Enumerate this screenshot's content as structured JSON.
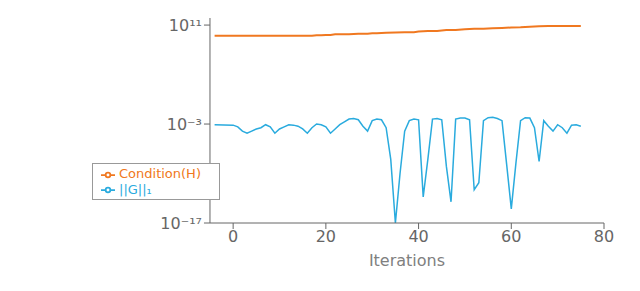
{
  "chart_data": {
    "type": "line",
    "xlabel": "Iterations",
    "log": "y",
    "grid": false,
    "legend": "lower left",
    "xlim": [
      -5,
      80
    ],
    "xticks": [
      0,
      20,
      40,
      60,
      80
    ],
    "ylim": [
      1e-17,
      1000000000000.0
    ],
    "yticks": [
      {
        "value": 1e-17,
        "label": "10⁻¹⁷"
      },
      {
        "value": 0.001,
        "label": "10⁻³"
      },
      {
        "value": 100000000000.0,
        "label": "10¹¹"
      }
    ],
    "series": [
      {
        "name": "||G||₁",
        "color": "#2AABDE",
        "x": [
          -4,
          0,
          1,
          2,
          3,
          4,
          5,
          6,
          7,
          8,
          9,
          10,
          11,
          12,
          13,
          14,
          15,
          16,
          17,
          18,
          19,
          20,
          21,
          22,
          23,
          24,
          25,
          26,
          27,
          28,
          29,
          30,
          31,
          32,
          33,
          34,
          35,
          36,
          37,
          38,
          39,
          40,
          41,
          42,
          43,
          44,
          45,
          46,
          47,
          48,
          49,
          50,
          51,
          52,
          53,
          54,
          55,
          56,
          57,
          58,
          59,
          60,
          61,
          62,
          63,
          64,
          65,
          66,
          67,
          68,
          69,
          70,
          71,
          72,
          73,
          74,
          75
        ],
        "values": [
          0.0008,
          0.0007,
          0.0004,
          0.0001,
          5e-05,
          0.0001,
          0.0002,
          0.0003,
          0.0008,
          0.0004,
          5e-05,
          0.0002,
          0.0004,
          0.0008,
          0.0007,
          0.0005,
          0.0002,
          5e-05,
          0.0003,
          0.001,
          0.0008,
          0.0004,
          5e-05,
          0.0002,
          0.0008,
          0.002,
          0.005,
          0.006,
          0.004,
          0.0005,
          0.0001,
          0.003,
          0.005,
          0.004,
          0.0003,
          1e-08,
          1e-17,
          1e-10,
          0.0001,
          0.003,
          0.005,
          0.004,
          5e-14,
          1e-08,
          0.005,
          0.006,
          0.004,
          1e-09,
          1e-14,
          0.005,
          0.007,
          0.007,
          0.004,
          5e-13,
          5e-12,
          0.003,
          0.008,
          0.009,
          0.006,
          0.003,
          2e-09,
          1e-15,
          3e-09,
          0.003,
          0.008,
          0.007,
          0.0003,
          5e-09,
          0.003,
          0.0005,
          0.0001,
          0.0008,
          0.0003,
          5e-05,
          0.0007,
          0.0008,
          0.0005
        ]
      },
      {
        "name": "Condition(H)",
        "color": "#F07820",
        "x": [
          -4,
          0,
          5,
          8,
          10,
          12,
          14,
          16,
          17,
          18,
          19,
          20,
          21,
          22,
          23,
          25,
          27,
          29,
          30,
          31,
          33,
          35,
          37,
          39,
          40,
          42,
          44,
          46,
          48,
          50,
          52,
          54,
          56,
          58,
          60,
          62,
          64,
          66,
          68,
          70,
          72,
          74,
          75
        ],
        "values": [
          3000000000.0,
          3000000000.0,
          3000000000.0,
          3000000000.0,
          3000000000.0,
          3000000000.0,
          3000000000.0,
          3000000000.0,
          3000000000.0,
          3500000000.0,
          3500000000.0,
          4000000000.0,
          4000000000.0,
          5000000000.0,
          5000000000.0,
          5000000000.0,
          6000000000.0,
          6000000000.0,
          7000000000.0,
          7000000000.0,
          8000000000.0,
          9000000000.0,
          10000000000.0,
          10000000000.0,
          12000000000.0,
          15000000000.0,
          15000000000.0,
          20000000000.0,
          20000000000.0,
          25000000000.0,
          30000000000.0,
          30000000000.0,
          35000000000.0,
          40000000000.0,
          45000000000.0,
          50000000000.0,
          60000000000.0,
          70000000000.0,
          75000000000.0,
          75000000000.0,
          75000000000.0,
          75000000000.0,
          75000000000.0
        ]
      }
    ]
  }
}
